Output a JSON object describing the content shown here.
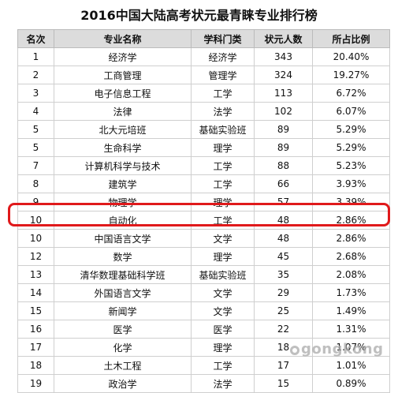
{
  "title": "2016中国大陆高考状元最青睐专业排行榜",
  "headers": [
    "名次",
    "专业名称",
    "学科门类",
    "状元人数",
    "所占比例"
  ],
  "rows": [
    [
      "1",
      "经济学",
      "经济学",
      "343",
      "20.40%"
    ],
    [
      "2",
      "工商管理",
      "管理学",
      "324",
      "19.27%"
    ],
    [
      "3",
      "电子信息工程",
      "工学",
      "113",
      "6.72%"
    ],
    [
      "4",
      "法律",
      "法学",
      "102",
      "6.07%"
    ],
    [
      "5",
      "北大元培班",
      "基础实验班",
      "89",
      "5.29%"
    ],
    [
      "5",
      "生命科学",
      "理学",
      "89",
      "5.29%"
    ],
    [
      "7",
      "计算机科学与技术",
      "工学",
      "88",
      "5.23%"
    ],
    [
      "8",
      "建筑学",
      "工学",
      "66",
      "3.93%"
    ],
    [
      "9",
      "物理学",
      "理学",
      "57",
      "3.39%"
    ],
    [
      "10",
      "自动化",
      "工学",
      "48",
      "2.86%"
    ],
    [
      "10",
      "中国语言文学",
      "文学",
      "48",
      "2.86%"
    ],
    [
      "12",
      "数学",
      "理学",
      "45",
      "2.68%"
    ],
    [
      "13",
      "清华数理基础科学班",
      "基础实验班",
      "35",
      "2.08%"
    ],
    [
      "14",
      "外国语言文学",
      "文学",
      "29",
      "1.73%"
    ],
    [
      "15",
      "新闻学",
      "文学",
      "25",
      "1.49%"
    ],
    [
      "16",
      "医学",
      "医学",
      "22",
      "1.31%"
    ],
    [
      "17",
      "化学",
      "理学",
      "18",
      "1.07%"
    ],
    [
      "18",
      "土木工程",
      "工学",
      "17",
      "1.01%"
    ],
    [
      "19",
      "政治学",
      "法学",
      "15",
      "0.89%"
    ]
  ],
  "highlight_row": 9,
  "highlight_color": "#e0191b",
  "watermark": "gongkong"
}
